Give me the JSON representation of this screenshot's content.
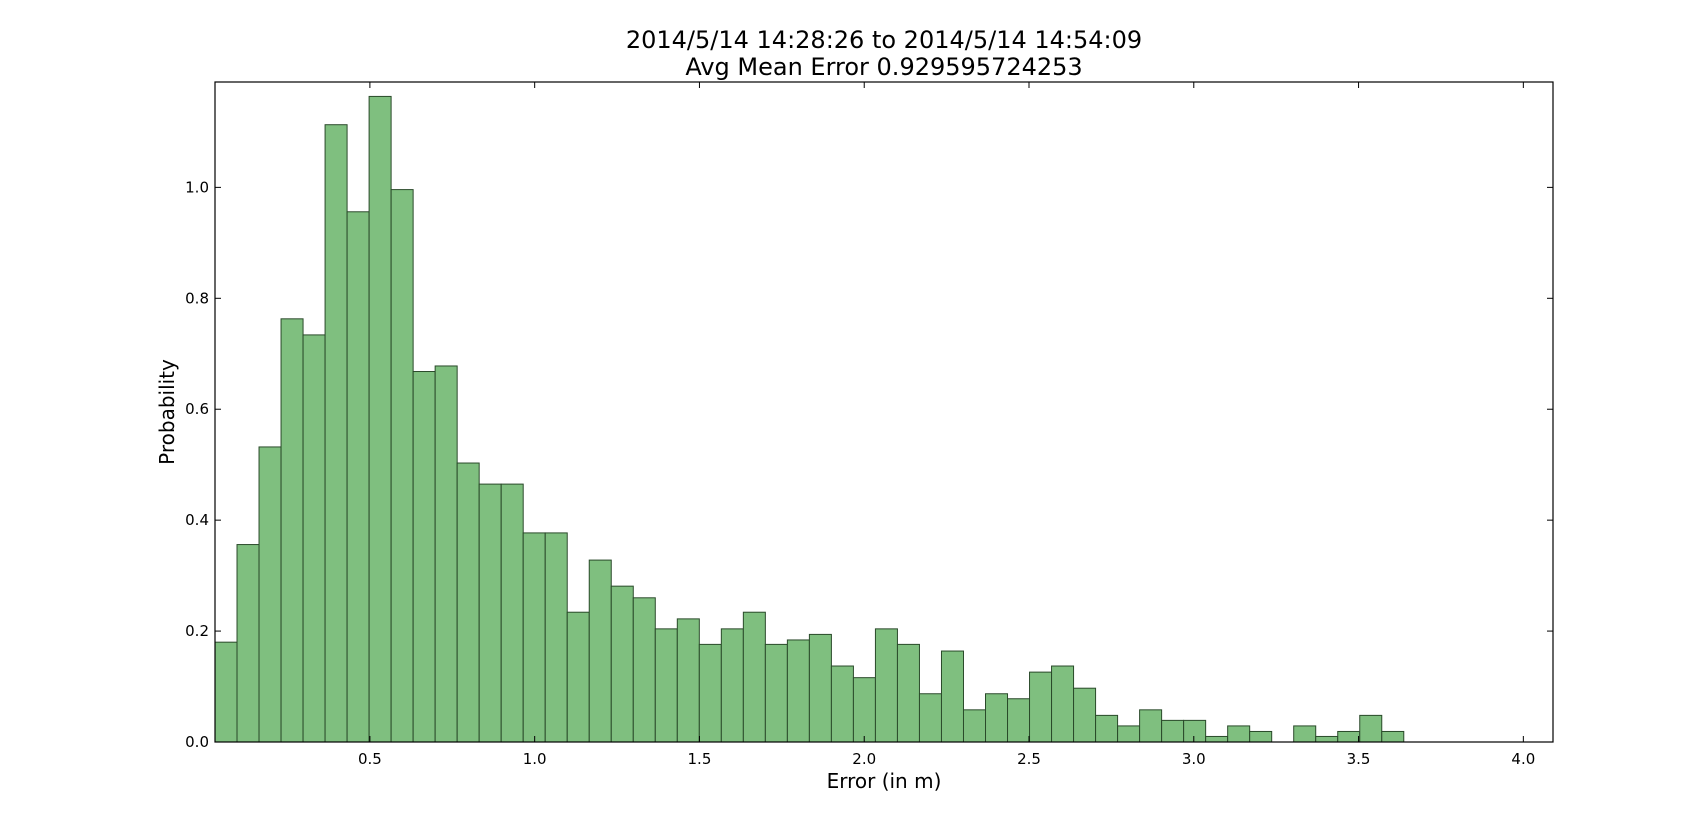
{
  "chart_data": {
    "type": "bar",
    "title_line1": "2014/5/14  14:28:26 to 2014/5/14  14:54:09",
    "title_line2": "Avg Mean Error 0.929595724253",
    "xlabel": "Error (in m)",
    "ylabel": "Probability",
    "xlim": [
      0.03,
      4.09
    ],
    "ylim": [
      0,
      1.19
    ],
    "xticks": [
      {
        "value": 0.5,
        "label": "0.5"
      },
      {
        "value": 1.0,
        "label": "1.0"
      },
      {
        "value": 1.5,
        "label": "1.5"
      },
      {
        "value": 2.0,
        "label": "2.0"
      },
      {
        "value": 2.5,
        "label": "2.5"
      },
      {
        "value": 3.0,
        "label": "3.0"
      },
      {
        "value": 3.5,
        "label": "3.5"
      },
      {
        "value": 4.0,
        "label": "4.0"
      }
    ],
    "yticks": [
      {
        "value": 0.0,
        "label": "0.0"
      },
      {
        "value": 0.2,
        "label": "0.2"
      },
      {
        "value": 0.4,
        "label": "0.4"
      },
      {
        "value": 0.6,
        "label": "0.6"
      },
      {
        "value": 0.8,
        "label": "0.8"
      },
      {
        "value": 1.0,
        "label": "1.0"
      }
    ],
    "bin_start": 0.03,
    "bin_width": 0.0668,
    "values": [
      0.18,
      0.356,
      0.532,
      0.763,
      0.734,
      1.113,
      0.956,
      1.164,
      0.996,
      0.668,
      0.678,
      0.503,
      0.465,
      0.465,
      0.377,
      0.377,
      0.234,
      0.328,
      0.281,
      0.26,
      0.204,
      0.222,
      0.176,
      0.204,
      0.234,
      0.176,
      0.184,
      0.194,
      0.137,
      0.116,
      0.204,
      0.176,
      0.087,
      0.164,
      0.058,
      0.087,
      0.078,
      0.126,
      0.137,
      0.097,
      0.048,
      0.029,
      0.058,
      0.039,
      0.039,
      0.01,
      0.029,
      0.019,
      0.0,
      0.029,
      0.01,
      0.019,
      0.048,
      0.019
    ],
    "bar_color": "#7fbf7f",
    "edge_color": "#2a4a2a",
    "grid": false
  }
}
